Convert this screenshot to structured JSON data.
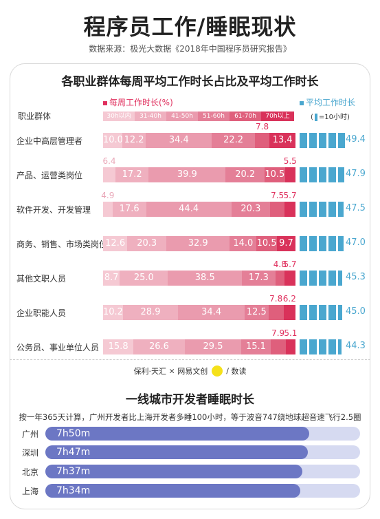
{
  "header": {
    "title": "程序员工作/睡眠现状",
    "source": "数据来源：极光大数据《2018年中国程序员研究报告》"
  },
  "weekly_chart": {
    "title": "各职业群体每周平均工作时长占比及平均工作时长",
    "legend_pink": "每周工作时长(%)",
    "legend_blue": "平均工作时长",
    "group_header": "职业群体",
    "unit_note_prefix": "(",
    "unit_note_suffix": "=10小时)",
    "ranges": [
      "30h以内",
      "31-40h",
      "41-50h",
      "51-60h",
      "61-70h",
      "70h以上"
    ],
    "colors": [
      "#f5c9d3",
      "#efb0bf",
      "#ea9bae",
      "#e47f97",
      "#df5f7c",
      "#d9325a"
    ],
    "avg_color": "#4aa7cf"
  },
  "chart_data": {
    "type": "bar",
    "stacked": true,
    "orientation": "horizontal",
    "categories": [
      "企业中高层管理者",
      "产品、运营类岗位",
      "软件开发、开发管理",
      "商务、销售、市场类岗位",
      "其他文职人员",
      "企业职能人员",
      "公务员、事业单位人员"
    ],
    "series": [
      {
        "name": "30h以内",
        "values": [
          10.0,
          6.4,
          4.9,
          12.6,
          8.7,
          10.2,
          15.8
        ]
      },
      {
        "name": "31-40h",
        "values": [
          12.2,
          17.2,
          17.6,
          20.3,
          25.0,
          28.9,
          26.6
        ]
      },
      {
        "name": "41-50h",
        "values": [
          34.4,
          39.9,
          44.4,
          32.9,
          38.5,
          34.4,
          29.5
        ]
      },
      {
        "name": "51-60h",
        "values": [
          22.2,
          20.2,
          20.3,
          14.0,
          17.3,
          12.5,
          15.1
        ]
      },
      {
        "name": "61-70h",
        "values": [
          7.8,
          10.5,
          7.5,
          10.5,
          4.8,
          7.8,
          7.9
        ]
      },
      {
        "name": "70h以上",
        "values": [
          13.4,
          5.5,
          5.7,
          9.7,
          5.7,
          6.2,
          5.1
        ]
      }
    ],
    "labels": {
      "0": [
        "10.0",
        "12.2",
        "34.4",
        "22.2",
        "7.8",
        "13.4"
      ],
      "1": [
        "6.4",
        "17.2",
        "39.9",
        "20.2",
        "10.5",
        "5.5"
      ],
      "2": [
        "4.9",
        "17.6",
        "44.4",
        "20.3",
        "7.5",
        "5.7"
      ],
      "3": [
        "12.6",
        "20.3",
        "32.9",
        "14.0",
        "10.5",
        "9.7"
      ],
      "4": [
        "8.7",
        "25.0",
        "38.5",
        "17.3",
        "4.8",
        "5.7"
      ],
      "5": [
        "10.2",
        "28.9",
        "34.4",
        "12.5",
        "7.8",
        "6.2"
      ],
      "6": [
        "15.8",
        "26.6",
        "29.5",
        "15.1",
        "7.9",
        "5.1"
      ]
    },
    "avg_hours": [
      49.4,
      47.9,
      47.5,
      47.0,
      45.3,
      45.0,
      44.3
    ],
    "avg_labels": [
      "49.4",
      "47.9",
      "47.5",
      "47.0",
      "45.3",
      "45.0",
      "44.3"
    ]
  },
  "partners": {
    "logo1": "保利·天汇",
    "sep1": "×",
    "logo2": "网易文创",
    "sep2": "/",
    "logo3": "数读"
  },
  "sleep": {
    "title": "一线城市开发者睡眠时长",
    "note": "按一年365天计算，广州开发者比上海开发者多睡100小时，等于波音747绕地球超音速飞行2.5圈",
    "cities": [
      {
        "city": "广州",
        "label": "7h50m",
        "minutes": 470
      },
      {
        "city": "深圳",
        "label": "7h47m",
        "minutes": 467
      },
      {
        "city": "北京",
        "label": "7h37m",
        "minutes": 457
      },
      {
        "city": "上海",
        "label": "7h34m",
        "minutes": 454
      }
    ]
  }
}
